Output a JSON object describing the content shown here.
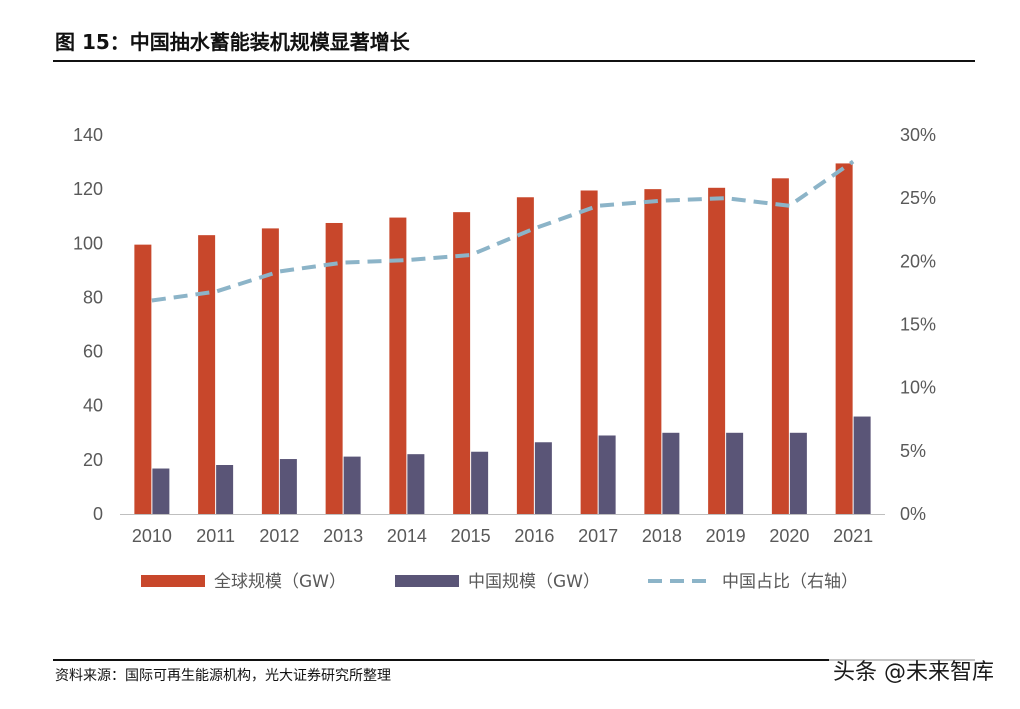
{
  "header": {
    "title": "图 15：中国抽水蓄能装机规模显著增长"
  },
  "footer": {
    "source": "资料来源：国际可再生能源机构，光大证券研究所整理",
    "watermark": "头条 @未来智库"
  },
  "colors": {
    "global": "#C8472B",
    "china": "#5A5577",
    "share": "#8CB4C8"
  },
  "chart_data": {
    "type": "bar",
    "categories": [
      "2010",
      "2011",
      "2012",
      "2013",
      "2014",
      "2015",
      "2016",
      "2017",
      "2018",
      "2019",
      "2020",
      "2021"
    ],
    "series": [
      {
        "name": "全球规模（GW）",
        "type": "bar",
        "axis": "left",
        "values": [
          99.5,
          103,
          105.5,
          107.5,
          109.5,
          111.5,
          117,
          119.5,
          120,
          120.5,
          124,
          129.5
        ]
      },
      {
        "name": "中国规模（GW）",
        "type": "bar",
        "axis": "left",
        "values": [
          16.8,
          18.1,
          20.3,
          21.2,
          22.1,
          23,
          26.5,
          29,
          30,
          30,
          30,
          36
        ]
      },
      {
        "name": "中国占比（右轴）",
        "type": "line",
        "axis": "right",
        "style": "dashed",
        "values": [
          0.169,
          0.176,
          0.192,
          0.199,
          0.201,
          0.205,
          0.226,
          0.244,
          0.248,
          0.25,
          0.244,
          0.279
        ]
      }
    ],
    "y_left": {
      "min": 0,
      "max": 140,
      "ticks": [
        "0",
        "20",
        "40",
        "60",
        "80",
        "100",
        "120",
        "140"
      ]
    },
    "y_right": {
      "min": 0,
      "max": 0.3,
      "ticks": [
        "0%",
        "5%",
        "10%",
        "15%",
        "20%",
        "25%",
        "30%"
      ]
    },
    "grid": false,
    "legend": "bottom"
  }
}
